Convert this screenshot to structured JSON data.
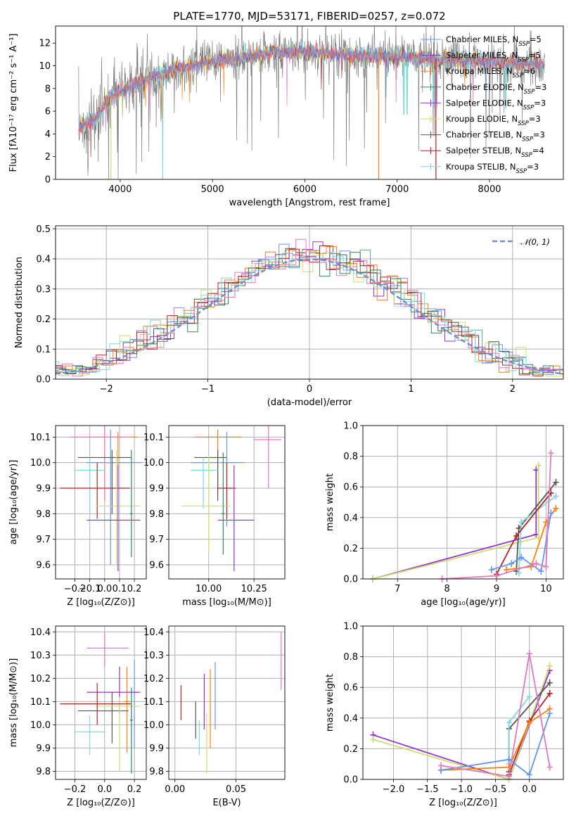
{
  "figure_title": "PLATE=1770, MJD=53171, FIBERID=0257, z=0.072",
  "colors": {
    "Chabrier MILES": "#6495ed",
    "Salpeter MILES": "#9932cc",
    "Kroupa MILES": "#ff7f0e",
    "Chabrier ELODIE": "#2e8b57",
    "Salpeter ELODIE": "#9932cc",
    "Kroupa ELODIE": "#c8e36e",
    "Chabrier STELIB": "#555555",
    "Salpeter STELIB": "#b22222",
    "Kroupa STELIB": "#7fd8dc",
    "pink": "#e377c2",
    "normal_curve": "#6a8fd6"
  },
  "chart_data": [
    {
      "type": "line",
      "id": "spectrum",
      "title": "PLATE=1770, MJD=53171, FIBERID=0257, z=0.072",
      "xlabel": "wavelength [Angstrom, rest frame]",
      "ylabel": "Flux [fλ10⁻¹⁷ erg cm⁻² s⁻¹ A⁻¹]",
      "xlim": [
        3300,
        8800
      ],
      "ylim": [
        0,
        13.5
      ],
      "xticks": [
        4000,
        5000,
        6000,
        7000,
        8000
      ],
      "yticks": [
        0,
        2,
        4,
        6,
        8,
        10,
        12
      ],
      "grid": false,
      "legend_position": "top-right",
      "legend": [
        "Chabrier MILES, N_SSP=5",
        "Salpeter MILES, N_SSP=5",
        "Kroupa MILES, N_SSP=6",
        "Chabrier ELODIE, N_SSP=3",
        "Salpeter ELODIE, N_SSP=3",
        "Kroupa ELODIE, N_SSP=3",
        "Chabrier STELIB, N_SSP=3",
        "Salpeter STELIB, N_SSP=4",
        "Kroupa STELIB, N_SSP=3"
      ],
      "continuum": {
        "x": [
          3550,
          3650,
          3750,
          3850,
          3950,
          4050,
          4200,
          4400,
          4600,
          4800,
          5000,
          5200,
          5400,
          5600,
          5800,
          6000,
          6200,
          6400,
          6600,
          6800,
          7000,
          7200,
          7400,
          7600,
          7800,
          8000,
          8200,
          8400,
          8600
        ],
        "y": [
          4.5,
          5.0,
          5.5,
          6.8,
          7.6,
          8.0,
          8.5,
          9.2,
          9.7,
          10.1,
          10.4,
          10.6,
          10.8,
          11.1,
          11.2,
          11.2,
          11.1,
          11.0,
          10.9,
          10.8,
          10.8,
          10.7,
          10.6,
          10.5,
          10.5,
          10.4,
          10.3,
          10.2,
          10.0
        ]
      }
    },
    {
      "type": "line",
      "id": "residuals",
      "xlabel": "(data-model)/error",
      "ylabel": "Normed distribution",
      "xlim": [
        -2.5,
        2.5
      ],
      "ylim": [
        0,
        0.51
      ],
      "xticks": [
        -2,
        -1,
        0,
        1,
        2
      ],
      "yticks": [
        0.0,
        0.1,
        0.2,
        0.3,
        0.4,
        0.5
      ],
      "grid": true,
      "legend_position": "top-right",
      "legend": [
        "𝒩(0, 1)"
      ],
      "normal_curve": {
        "mean": 0,
        "sigma": 1
      }
    },
    {
      "type": "scatter",
      "id": "age-vs-Z",
      "xlabel": "Z [log₁₀(Z/Z⊙)]",
      "ylabel": "age  [log₁₀(age/yr)]",
      "xlim": [
        -0.33,
        0.28
      ],
      "ylim": [
        9.545,
        10.145
      ],
      "xticks": [
        -0.2,
        -0.1,
        0.0,
        0.1,
        0.2
      ],
      "yticks": [
        9.6,
        9.7,
        9.8,
        9.9,
        10.0,
        10.1
      ],
      "grid": true,
      "points": [
        {
          "c": "#6495ed",
          "x": 0.04,
          "xe": [
            -0.12,
            0.25
          ],
          "y": 10.0,
          "ye": [
            9.6,
            10.13
          ]
        },
        {
          "c": "#ff7f0e",
          "x": 0.09,
          "xe": [
            -0.12,
            0.22
          ],
          "y": 10.1,
          "ye": [
            9.9,
            10.12
          ]
        },
        {
          "c": "#e377c2",
          "x": 0.0,
          "xe": [
            -0.23,
            0.18
          ],
          "y": 10.1,
          "ye": [
            9.85,
            10.145
          ]
        },
        {
          "c": "#555555",
          "x": 0.05,
          "xe": [
            -0.18,
            0.18
          ],
          "y": 10.02,
          "ye": [
            9.8,
            10.05
          ]
        },
        {
          "c": "#7fd8dc",
          "x": -0.1,
          "xe": [
            -0.2,
            0.0
          ],
          "y": 9.97,
          "ye": [
            9.8,
            10.02
          ]
        },
        {
          "c": "#b22222",
          "x": -0.05,
          "xe": [
            -0.3,
            0.17
          ],
          "y": 9.9,
          "ye": [
            9.78,
            10.0
          ]
        },
        {
          "c": "#c8e36e",
          "x": 0.08,
          "xe": [
            -0.06,
            0.24
          ],
          "y": 9.83,
          "ye": [
            9.6,
            10.05
          ]
        },
        {
          "c": "#9932cc",
          "x": 0.09,
          "xe": [
            -0.12,
            0.24
          ],
          "y": 9.775,
          "ye": [
            9.575,
            9.99
          ]
        },
        {
          "c": "#2e8b57",
          "x": 0.18,
          "xe": [
            0.17,
            0.19
          ],
          "y": 9.8,
          "ye": [
            9.63,
            10.05
          ]
        }
      ]
    },
    {
      "type": "scatter",
      "id": "age-vs-mass",
      "xlabel": "mass [log₁₀(M/M⊙)]",
      "ylabel": "",
      "xlim": [
        9.78,
        10.42
      ],
      "ylim": [
        9.545,
        10.145
      ],
      "xticks": [
        10.0,
        10.25
      ],
      "xticklabels": [
        "10.00",
        "10.25"
      ],
      "yticks": [
        9.6,
        9.7,
        9.8,
        9.9,
        10.0,
        10.1
      ],
      "grid": true,
      "points": [
        {
          "c": "#e377c2",
          "x": 10.33,
          "xe": [
            10.25,
            10.4
          ],
          "y": 10.09,
          "ye": [
            9.9,
            10.145
          ]
        },
        {
          "c": "#ff7f0e",
          "x": 10.05,
          "xe": [
            9.92,
            10.18
          ],
          "y": 10.1,
          "ye": [
            9.88,
            10.13
          ]
        },
        {
          "c": "#6495ed",
          "x": 10.1,
          "xe": [
            9.9,
            10.2
          ],
          "y": 10.0,
          "ye": [
            9.75,
            10.12
          ]
        },
        {
          "c": "#555555",
          "x": 10.05,
          "xe": [
            9.92,
            10.1
          ],
          "y": 10.02,
          "ye": [
            9.85,
            10.05
          ]
        },
        {
          "c": "#7fd8dc",
          "x": 9.97,
          "xe": [
            9.9,
            10.05
          ],
          "y": 9.97,
          "ye": [
            9.82,
            10.02
          ]
        },
        {
          "c": "#b22222",
          "x": 10.1,
          "xe": [
            10.05,
            10.15
          ],
          "y": 9.9,
          "ye": [
            9.78,
            10.0
          ]
        },
        {
          "c": "#c8e36e",
          "x": 10.0,
          "xe": [
            9.85,
            10.12
          ],
          "y": 9.83,
          "ye": [
            9.65,
            10.03
          ]
        },
        {
          "c": "#9932cc",
          "x": 10.14,
          "xe": [
            10.05,
            10.25
          ],
          "y": 9.775,
          "ye": [
            9.575,
            9.99
          ]
        },
        {
          "c": "#2e8b57",
          "x": 10.08,
          "xe": [
            10.07,
            10.09
          ],
          "y": 9.8,
          "ye": [
            9.64,
            10.04
          ]
        }
      ]
    },
    {
      "type": "line",
      "id": "weight-vs-age",
      "xlabel": "age  [log₁₀(age/yr)]",
      "ylabel": "mass weight",
      "xlim": [
        6.3,
        10.35
      ],
      "ylim": [
        0,
        1.0
      ],
      "xticks": [
        7,
        8,
        9,
        10
      ],
      "yticks": [
        0.0,
        0.2,
        0.4,
        0.6,
        0.8,
        1.0
      ],
      "grid": true,
      "series": [
        {
          "c": "#9932cc",
          "x": [
            6.5,
            9.8,
            9.8
          ],
          "y": [
            0.0,
            0.29,
            0.71
          ]
        },
        {
          "c": "#c8e36e",
          "x": [
            6.5,
            9.85,
            9.85
          ],
          "y": [
            0.0,
            0.27,
            0.74
          ]
        },
        {
          "c": "#555555",
          "x": [
            9.4,
            9.45,
            10.2
          ],
          "y": [
            0.05,
            0.33,
            0.63
          ]
        },
        {
          "c": "#7fd8dc",
          "x": [
            9.45,
            9.5,
            10.2
          ],
          "y": [
            0.04,
            0.37,
            0.54
          ]
        },
        {
          "c": "#b22222",
          "x": [
            9.0,
            9.4,
            10.1
          ],
          "y": [
            0.03,
            0.28,
            0.56
          ]
        },
        {
          "c": "#ff7f0e",
          "x": [
            9.2,
            9.7,
            10.0,
            10.2
          ],
          "y": [
            0.06,
            0.08,
            0.37,
            0.46
          ]
        },
        {
          "c": "#6495ed",
          "x": [
            8.9,
            9.3,
            9.5,
            9.9,
            10.1
          ],
          "y": [
            0.06,
            0.1,
            0.14,
            0.05,
            0.43
          ]
        },
        {
          "c": "#e377c2",
          "x": [
            7.9,
            9.0,
            9.8,
            10.0,
            10.1
          ],
          "y": [
            0.0,
            0.02,
            0.1,
            0.08,
            0.82
          ]
        }
      ]
    },
    {
      "type": "scatter",
      "id": "mass-vs-Z",
      "xlabel": "Z [log₁₀(Z/Z⊙)]",
      "ylabel": "mass [log₁₀(M/M⊙)]",
      "xlim": [
        -0.33,
        0.28
      ],
      "ylim": [
        9.765,
        10.425
      ],
      "xticks": [
        -0.2,
        0.0,
        0.2
      ],
      "yticks": [
        9.8,
        9.9,
        10.0,
        10.1,
        10.2,
        10.3,
        10.4
      ],
      "grid": true,
      "points": [
        {
          "c": "#e377c2",
          "x": 0.0,
          "xe": [
            -0.12,
            0.16
          ],
          "y": 10.33,
          "ye": [
            10.25,
            10.4
          ]
        },
        {
          "c": "#6495ed",
          "x": 0.2,
          "xe": [
            0.18,
            0.22
          ],
          "y": 10.14,
          "ye": [
            9.9,
            10.28
          ]
        },
        {
          "c": "#ff7f0e",
          "x": 0.15,
          "xe": [
            0.13,
            0.17
          ],
          "y": 10.1,
          "ye": [
            9.88,
            10.25
          ]
        },
        {
          "c": "#9932cc",
          "x": 0.1,
          "xe": [
            -0.12,
            0.24
          ],
          "y": 10.14,
          "ye": [
            10.05,
            10.25
          ]
        },
        {
          "c": "#555555",
          "x": 0.05,
          "xe": [
            -0.18,
            0.16
          ],
          "y": 10.06,
          "ye": [
            9.92,
            10.14
          ]
        },
        {
          "c": "#c8e36e",
          "x": 0.1,
          "xe": [
            -0.06,
            0.24
          ],
          "y": 10.08,
          "ye": [
            9.8,
            10.12
          ]
        },
        {
          "c": "#b22222",
          "x": -0.05,
          "xe": [
            -0.3,
            0.18
          ],
          "y": 10.09,
          "ye": [
            10.0,
            10.18
          ]
        },
        {
          "c": "#7fd8dc",
          "x": -0.1,
          "xe": [
            -0.2,
            0.0
          ],
          "y": 9.97,
          "ye": [
            9.87,
            10.04
          ]
        },
        {
          "c": "#2e8b57",
          "x": 0.18,
          "xe": [
            0.17,
            0.19
          ],
          "y": 10.02,
          "ye": [
            9.79,
            10.16
          ]
        }
      ]
    },
    {
      "type": "scatter",
      "id": "mass-vs-ebv",
      "xlabel": "E(B-V)",
      "ylabel": "",
      "xlim": [
        -0.005,
        0.09
      ],
      "ylim": [
        9.765,
        10.425
      ],
      "xticks": [
        0.0,
        0.05
      ],
      "xticklabels": [
        "0.00",
        "0.05"
      ],
      "yticks": [
        9.8,
        9.9,
        10.0,
        10.1,
        10.2,
        10.3,
        10.4
      ],
      "grid": true,
      "points": [
        {
          "c": "#b22222",
          "x": 0.005,
          "y": 10.1,
          "ye": [
            10.02,
            10.17
          ]
        },
        {
          "c": "#555555",
          "x": 0.017,
          "y": 10.02,
          "ye": [
            9.94,
            10.1
          ]
        },
        {
          "c": "#7fd8dc",
          "x": 0.02,
          "y": 9.95,
          "ye": [
            9.87,
            10.02
          ]
        },
        {
          "c": "#9932cc",
          "x": 0.024,
          "y": 10.12,
          "ye": [
            9.98,
            10.22
          ]
        },
        {
          "c": "#c8e36e",
          "x": 0.026,
          "y": 9.9,
          "ye": [
            9.79,
            10.05
          ]
        },
        {
          "c": "#ff7f0e",
          "x": 0.029,
          "y": 10.1,
          "ye": [
            9.9,
            10.24
          ]
        },
        {
          "c": "#6495ed",
          "x": 0.033,
          "y": 10.14,
          "ye": [
            9.98,
            10.27
          ]
        },
        {
          "c": "#e377c2",
          "x": 0.087,
          "y": 10.27,
          "ye": [
            10.15,
            10.4
          ]
        }
      ]
    },
    {
      "type": "line",
      "id": "weight-vs-Z",
      "xlabel": "Z [log₁₀(Z/Z⊙)]",
      "ylabel": "mass weight",
      "xlim": [
        -2.45,
        0.5
      ],
      "ylim": [
        0,
        1.0
      ],
      "xticks": [
        -2.0,
        -1.5,
        -1.0,
        -0.5,
        0.0
      ],
      "yticks": [
        0.0,
        0.2,
        0.4,
        0.6,
        0.8,
        1.0
      ],
      "grid": true,
      "series": [
        {
          "c": "#9932cc",
          "x": [
            -2.3,
            -0.3,
            0.3
          ],
          "y": [
            0.29,
            0.0,
            0.71
          ]
        },
        {
          "c": "#c8e36e",
          "x": [
            -2.3,
            -0.3,
            0.3
          ],
          "y": [
            0.26,
            0.0,
            0.74
          ]
        },
        {
          "c": "#555555",
          "x": [
            -0.3,
            -0.3,
            0.3
          ],
          "y": [
            0.05,
            0.33,
            0.63
          ]
        },
        {
          "c": "#7fd8dc",
          "x": [
            -0.3,
            -0.3,
            0.0
          ],
          "y": [
            0.1,
            0.37,
            0.54
          ]
        },
        {
          "c": "#b22222",
          "x": [
            -0.3,
            0.0,
            0.3
          ],
          "y": [
            0.03,
            0.38,
            0.56
          ]
        },
        {
          "c": "#ff7f0e",
          "x": [
            -1.3,
            -0.3,
            0.0,
            0.3
          ],
          "y": [
            0.06,
            0.08,
            0.37,
            0.46
          ]
        },
        {
          "c": "#6495ed",
          "x": [
            -1.3,
            -0.3,
            0.0,
            0.3
          ],
          "y": [
            0.06,
            0.13,
            0.03,
            0.43
          ]
        },
        {
          "c": "#e377c2",
          "x": [
            -1.3,
            -0.3,
            0.0,
            0.3
          ],
          "y": [
            0.09,
            0.02,
            0.82,
            0.08
          ]
        }
      ]
    }
  ]
}
